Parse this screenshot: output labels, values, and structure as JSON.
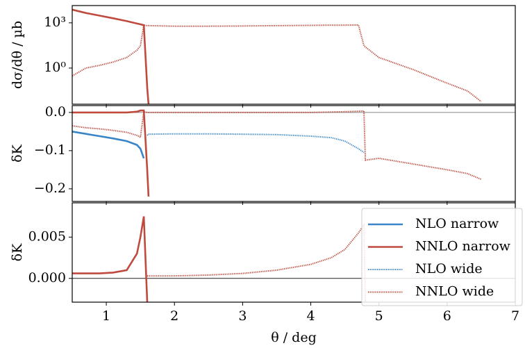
{
  "chart_data": [
    {
      "type": "line",
      "ylabel": "dσ/dθ / µb",
      "log": true,
      "x": [
        0.5,
        0.7,
        0.9,
        1.1,
        1.3,
        1.45,
        1.5,
        1.55,
        1.6,
        1.62,
        2,
        2.5,
        3,
        3.5,
        4,
        4.3,
        4.5,
        4.7,
        4.78,
        4.8,
        5,
        5.5,
        6,
        6.3,
        6.5
      ],
      "xlim": [
        0.5,
        7.0
      ],
      "xticks": [
        1,
        2,
        3,
        4,
        5,
        6,
        7
      ],
      "ylim": [
        0.004,
        14000
      ],
      "yticks": [
        {
          "value": 1,
          "label": "10⁰"
        },
        {
          "value": 1000,
          "label": "10³"
        }
      ],
      "series": [
        {
          "name": "NNLO narrow",
          "color": "#bf4a3e",
          "style": "solid",
          "values": [
            7500,
            4500,
            3000,
            2000,
            1300,
            900,
            800,
            700,
            0.05,
            0.004,
            null,
            null,
            null,
            null,
            null,
            null,
            null,
            null,
            null,
            null,
            null,
            null,
            null,
            null,
            null
          ]
        },
        {
          "name": "NNLO wide",
          "color": "#bf4a3e",
          "style": "dotted",
          "values": [
            0.3,
            1.0,
            1.5,
            2.5,
            5,
            15,
            30,
            700,
            650,
            650,
            600,
            600,
            620,
            650,
            680,
            700,
            700,
            720,
            30,
            25,
            5,
            0.8,
            0.1,
            0.03,
            0.006
          ]
        }
      ]
    },
    {
      "type": "line",
      "ylabel": "δK",
      "axhline": 0,
      "x": [
        0.5,
        0.7,
        0.9,
        1.1,
        1.3,
        1.45,
        1.5,
        1.55,
        1.6,
        1.62,
        2,
        2.5,
        3,
        3.5,
        4,
        4.3,
        4.5,
        4.7,
        4.78,
        4.8,
        5,
        5.5,
        6,
        6.3,
        6.5
      ],
      "xlim": [
        0.5,
        7.0
      ],
      "xticks": [
        1,
        2,
        3,
        4,
        5,
        6,
        7
      ],
      "ylim": [
        -0.233,
        0.018
      ],
      "yticks": [
        {
          "value": -0.2,
          "label": "−0.2"
        },
        {
          "value": -0.1,
          "label": "−0.1"
        },
        {
          "value": 0,
          "label": "0.0"
        }
      ],
      "series": [
        {
          "name": "NLO narrow",
          "color": "#3a85c8",
          "style": "solid",
          "values": [
            -0.05,
            -0.056,
            -0.062,
            -0.068,
            -0.075,
            -0.085,
            -0.095,
            -0.12,
            null,
            null,
            null,
            null,
            null,
            null,
            null,
            null,
            null,
            null,
            null,
            null,
            null,
            null,
            null,
            null,
            null
          ]
        },
        {
          "name": "NNLO narrow",
          "color": "#bf4a3e",
          "style": "solid",
          "values": [
            0,
            0,
            0,
            0,
            0,
            0.002,
            0.005,
            0.005,
            -0.15,
            -0.22,
            null,
            null,
            null,
            null,
            null,
            null,
            null,
            null,
            null,
            null,
            null,
            null,
            null,
            null,
            null
          ]
        },
        {
          "name": "NLO wide",
          "color": "#3a85c8",
          "style": "dotted",
          "values": [
            null,
            null,
            null,
            null,
            null,
            null,
            null,
            null,
            -0.06,
            -0.057,
            -0.056,
            -0.056,
            -0.057,
            -0.058,
            -0.062,
            -0.066,
            -0.075,
            -0.095,
            -0.105,
            null,
            null,
            null,
            null,
            null,
            null
          ]
        },
        {
          "name": "NNLO wide",
          "color": "#bf4a3e",
          "style": "dotted",
          "values": [
            -0.035,
            -0.04,
            -0.043,
            -0.047,
            -0.052,
            -0.06,
            -0.065,
            0.002,
            0,
            0,
            0,
            0,
            0,
            0,
            0,
            0.001,
            0.002,
            0.003,
            0.004,
            -0.125,
            -0.12,
            -0.135,
            -0.15,
            -0.16,
            -0.175
          ]
        }
      ]
    },
    {
      "type": "line",
      "ylabel": "δK",
      "xlabel": "θ / deg",
      "axhline": 0,
      "legend": "upper right",
      "x": [
        0.5,
        0.7,
        0.9,
        1.1,
        1.3,
        1.45,
        1.5,
        1.55,
        1.6,
        1.62,
        2,
        2.5,
        3,
        3.5,
        4,
        4.3,
        4.5,
        4.7,
        4.78,
        4.8,
        5,
        5.5,
        6,
        6.3,
        6.5
      ],
      "xlim": [
        0.5,
        7.0
      ],
      "xticks": [
        1,
        2,
        3,
        4,
        5,
        6,
        7
      ],
      "ylim": [
        -0.00288,
        0.00915
      ],
      "yticks": [
        {
          "value": 0,
          "label": "0.000"
        },
        0.005
      ],
      "series": [
        {
          "name": "NLO narrow",
          "color": "#3a85c8",
          "style": "solid",
          "values": [
            null,
            null,
            null,
            null,
            null,
            null,
            null,
            null,
            null,
            null,
            null,
            null,
            null,
            null,
            null,
            null,
            null,
            null,
            null,
            null,
            null,
            null,
            null,
            null,
            null
          ]
        },
        {
          "name": "NNLO narrow",
          "color": "#bf4a3e",
          "style": "solid",
          "values": [
            0.0006,
            0.0006,
            0.0006,
            0.0007,
            0.001,
            0.003,
            0.005,
            0.0075,
            -0.0029,
            null,
            null,
            null,
            null,
            null,
            null,
            null,
            null,
            null,
            null,
            null,
            null,
            null,
            null,
            null,
            null
          ]
        },
        {
          "name": "NLO wide",
          "color": "#3a85c8",
          "style": "dotted",
          "values": [
            null,
            null,
            null,
            null,
            null,
            null,
            null,
            null,
            null,
            null,
            null,
            null,
            null,
            null,
            null,
            null,
            null,
            null,
            null,
            null,
            null,
            null,
            null,
            null,
            null
          ]
        },
        {
          "name": "NNLO wide",
          "color": "#bf4a3e",
          "style": "dotted",
          "values": [
            null,
            null,
            null,
            null,
            null,
            null,
            null,
            null,
            0.0003,
            0.0003,
            0.0003,
            0.0004,
            0.0006,
            0.001,
            0.0017,
            0.0025,
            0.0035,
            0.0055,
            0.0065,
            -0.0029,
            null,
            null,
            null,
            null,
            null
          ]
        }
      ]
    }
  ]
}
